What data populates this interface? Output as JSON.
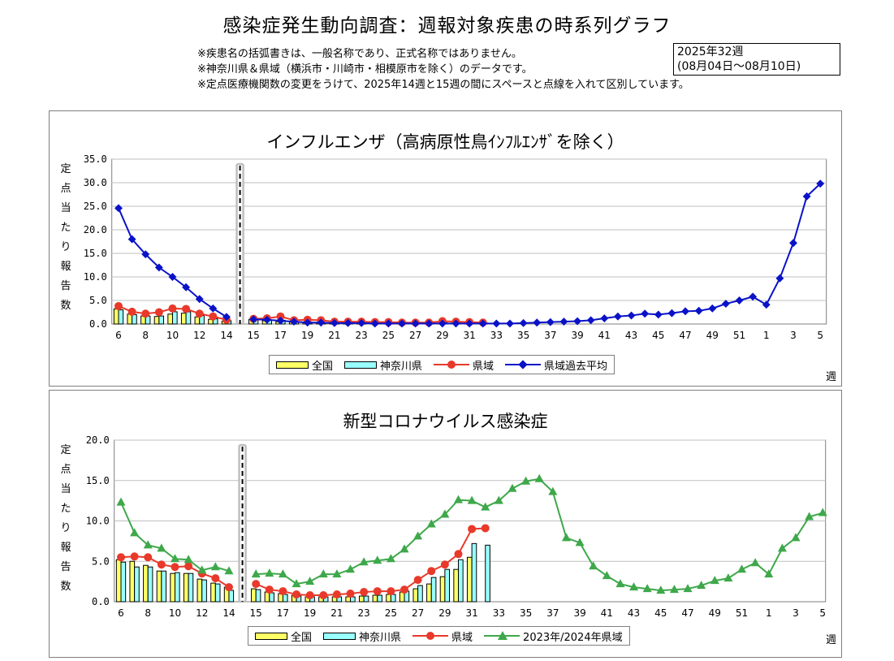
{
  "header": {
    "title": "感染症発生動向調査：週報対象疾患の時系列グラフ",
    "notes": [
      "※疾患名の括弧書きは、一般名称であり、正式名称ではありません。",
      "※神奈川県＆県域（横浜市・川崎市・相模原市を除く）のデータです。",
      "※定点医療機関数の変更をうけて、2025年14週と15週の間にスペースと点線を入れて区別しています。"
    ],
    "week_label": "2025年32週",
    "week_range": "(08月04日～08月10日)"
  },
  "colors": {
    "national_bar": "#ffff66",
    "kanagawa_bar": "#99ffff",
    "prefecture_line": "#e8392a",
    "past_avg_line": "#0a12c8",
    "prior_season_line": "#3ea84a",
    "gridline": "#bfbfbf",
    "separator": "#bfbfbf"
  },
  "chart_data": [
    {
      "id": "influenza",
      "type": "bar",
      "title": "インフルエンザ（高病原性鳥ｲﾝﾌﾙｴﾝｻﾞを除く）",
      "ylabel": "定点当たり報告数",
      "xlabel": "週",
      "ylim": [
        0,
        35
      ],
      "yticks": [
        "0.0",
        "5.0",
        "10.0",
        "15.0",
        "20.0",
        "25.0",
        "30.0",
        "35.0"
      ],
      "grid": true,
      "legend_position": "bottom",
      "x_tick_labels": [
        "6",
        "8",
        "10",
        "12",
        "14",
        "15",
        "17",
        "19",
        "21",
        "23",
        "25",
        "27",
        "29",
        "31",
        "33",
        "35",
        "37",
        "39",
        "41",
        "43",
        "45",
        "47",
        "49",
        "51",
        "1",
        "3",
        "5"
      ],
      "series": [
        {
          "name": "全国",
          "kind": "bar",
          "x": [
            6,
            7,
            8,
            9,
            10,
            11,
            12,
            13,
            14,
            15,
            16,
            17,
            18,
            19,
            20,
            21,
            22,
            23,
            24,
            25,
            26,
            27,
            28,
            29,
            30,
            31,
            32
          ],
          "values": [
            3.2,
            2.1,
            1.7,
            1.6,
            2.1,
            2.3,
            1.5,
            1.0,
            0.6,
            1.0,
            0.7,
            0.5,
            0.4,
            0.3,
            0.3,
            0.3,
            0.2,
            0.2,
            0.2,
            0.2,
            0.2,
            0.2,
            0.2,
            0.2,
            0.2,
            0.2,
            0.2
          ]
        },
        {
          "name": "神奈川県",
          "kind": "bar",
          "x": [
            6,
            7,
            8,
            9,
            10,
            11,
            12,
            13,
            14,
            15,
            16,
            17,
            18,
            19,
            20,
            21,
            22,
            23,
            24,
            25,
            26,
            27,
            28,
            29,
            30,
            31,
            32
          ],
          "values": [
            3.0,
            2.0,
            1.7,
            1.7,
            2.6,
            2.6,
            1.8,
            1.1,
            0.7,
            1.0,
            0.8,
            0.8,
            0.4,
            0.4,
            0.3,
            0.3,
            0.3,
            0.3,
            0.2,
            0.2,
            0.2,
            0.2,
            0.2,
            0.3,
            0.3,
            0.2,
            0.2
          ]
        },
        {
          "name": "県域",
          "kind": "line",
          "x": [
            6,
            7,
            8,
            9,
            10,
            11,
            12,
            13,
            14,
            15,
            16,
            17,
            18,
            19,
            20,
            21,
            22,
            23,
            24,
            25,
            26,
            27,
            28,
            29,
            30,
            31,
            32
          ],
          "values": [
            3.8,
            2.6,
            2.2,
            2.5,
            3.3,
            3.2,
            2.2,
            1.6,
            0.9,
            1.1,
            1.2,
            1.6,
            0.8,
            0.9,
            0.8,
            0.5,
            0.5,
            0.5,
            0.4,
            0.4,
            0.3,
            0.3,
            0.3,
            0.6,
            0.5,
            0.4,
            0.3
          ]
        },
        {
          "name": "県域過去平均",
          "kind": "line",
          "x": [
            6,
            7,
            8,
            9,
            10,
            11,
            12,
            13,
            14,
            15,
            16,
            17,
            18,
            19,
            20,
            21,
            22,
            23,
            24,
            25,
            26,
            27,
            28,
            29,
            30,
            31,
            32,
            33,
            34,
            35,
            36,
            37,
            38,
            39,
            40,
            41,
            42,
            43,
            44,
            45,
            46,
            47,
            48,
            49,
            50,
            51,
            52,
            53,
            54,
            55,
            56,
            57
          ],
          "values": [
            24.6,
            18.0,
            14.8,
            12.0,
            10.0,
            7.8,
            5.3,
            3.3,
            1.5,
            1.0,
            0.9,
            0.7,
            0.5,
            0.3,
            0.3,
            0.2,
            0.2,
            0.2,
            0.1,
            0.1,
            0.1,
            0.1,
            0.1,
            0.1,
            0.1,
            0.1,
            0.1,
            0.1,
            0.1,
            0.2,
            0.3,
            0.4,
            0.5,
            0.6,
            0.8,
            1.2,
            1.6,
            1.8,
            2.2,
            2.0,
            2.3,
            2.7,
            2.8,
            3.3,
            4.3,
            5.0,
            5.8,
            4.1,
            9.7,
            17.2,
            27.1,
            29.8
          ]
        }
      ]
    },
    {
      "id": "covid",
      "type": "bar",
      "title": "新型コロナウイルス感染症",
      "ylabel": "定点当たり報告数",
      "xlabel": "週",
      "ylim": [
        0,
        20
      ],
      "yticks": [
        "0.0",
        "5.0",
        "10.0",
        "15.0",
        "20.0"
      ],
      "grid": true,
      "legend_position": "bottom",
      "x_tick_labels": [
        "6",
        "8",
        "10",
        "12",
        "14",
        "15",
        "17",
        "19",
        "21",
        "23",
        "25",
        "27",
        "29",
        "31",
        "33",
        "35",
        "37",
        "39",
        "41",
        "43",
        "45",
        "47",
        "49",
        "51",
        "1",
        "3",
        "5"
      ],
      "series": [
        {
          "name": "全国",
          "kind": "bar",
          "x": [
            6,
            7,
            8,
            9,
            10,
            11,
            12,
            13,
            14,
            15,
            16,
            17,
            18,
            19,
            20,
            21,
            22,
            23,
            24,
            25,
            26,
            27,
            28,
            29,
            30,
            31
          ],
          "values": [
            5.2,
            5.0,
            4.5,
            3.8,
            3.5,
            3.5,
            2.8,
            2.3,
            1.8,
            1.6,
            1.2,
            1.0,
            0.8,
            0.6,
            0.6,
            0.6,
            0.6,
            0.7,
            0.8,
            0.9,
            1.2,
            1.6,
            2.2,
            3.1,
            4.0,
            5.5
          ]
        },
        {
          "name": "神奈川県",
          "kind": "bar",
          "x": [
            6,
            7,
            8,
            9,
            10,
            11,
            12,
            13,
            14,
            15,
            16,
            17,
            18,
            19,
            20,
            21,
            22,
            23,
            24,
            25,
            26,
            27,
            28,
            29,
            30,
            31,
            32
          ],
          "values": [
            4.9,
            4.3,
            4.3,
            3.8,
            3.6,
            3.5,
            2.7,
            2.2,
            1.4,
            1.5,
            1.1,
            0.9,
            0.7,
            0.6,
            0.6,
            0.6,
            0.6,
            0.7,
            0.8,
            0.9,
            1.3,
            2.0,
            3.0,
            4.0,
            5.2,
            7.2,
            7.0
          ]
        },
        {
          "name": "県域",
          "kind": "line",
          "x": [
            6,
            7,
            8,
            9,
            10,
            11,
            12,
            13,
            14,
            15,
            16,
            17,
            18,
            19,
            20,
            21,
            22,
            23,
            24,
            25,
            26,
            27,
            28,
            29,
            30,
            31,
            32
          ],
          "values": [
            5.5,
            5.6,
            5.5,
            4.6,
            4.3,
            4.4,
            3.5,
            2.9,
            1.8,
            2.2,
            1.5,
            1.3,
            0.9,
            0.8,
            0.8,
            0.9,
            1.0,
            1.2,
            1.3,
            1.3,
            1.5,
            2.7,
            3.8,
            4.6,
            5.9,
            9.0,
            9.1
          ]
        },
        {
          "name": "2023年/2024年県域",
          "kind": "line",
          "x": [
            6,
            7,
            8,
            9,
            10,
            11,
            12,
            13,
            14,
            15,
            16,
            17,
            18,
            19,
            20,
            21,
            22,
            23,
            24,
            25,
            26,
            27,
            28,
            29,
            30,
            31,
            32,
            33,
            34,
            35,
            36,
            37,
            38,
            39,
            40,
            41,
            42,
            43,
            44,
            45,
            46,
            47,
            48,
            49,
            50,
            51,
            52,
            53,
            54,
            55,
            56,
            57
          ],
          "values": [
            12.3,
            8.5,
            7.0,
            6.6,
            5.3,
            5.2,
            3.9,
            4.3,
            3.8,
            3.4,
            3.5,
            3.4,
            2.2,
            2.5,
            3.4,
            3.4,
            4.0,
            4.9,
            5.1,
            5.3,
            6.5,
            8.1,
            9.6,
            10.8,
            12.6,
            12.5,
            11.7,
            12.5,
            14.0,
            14.9,
            15.2,
            13.6,
            7.9,
            7.3,
            4.4,
            3.2,
            2.2,
            1.8,
            1.6,
            1.4,
            1.5,
            1.6,
            2.0,
            2.6,
            2.9,
            4.0,
            4.8,
            3.4,
            6.6,
            7.9,
            10.5,
            11.0
          ]
        }
      ]
    }
  ]
}
